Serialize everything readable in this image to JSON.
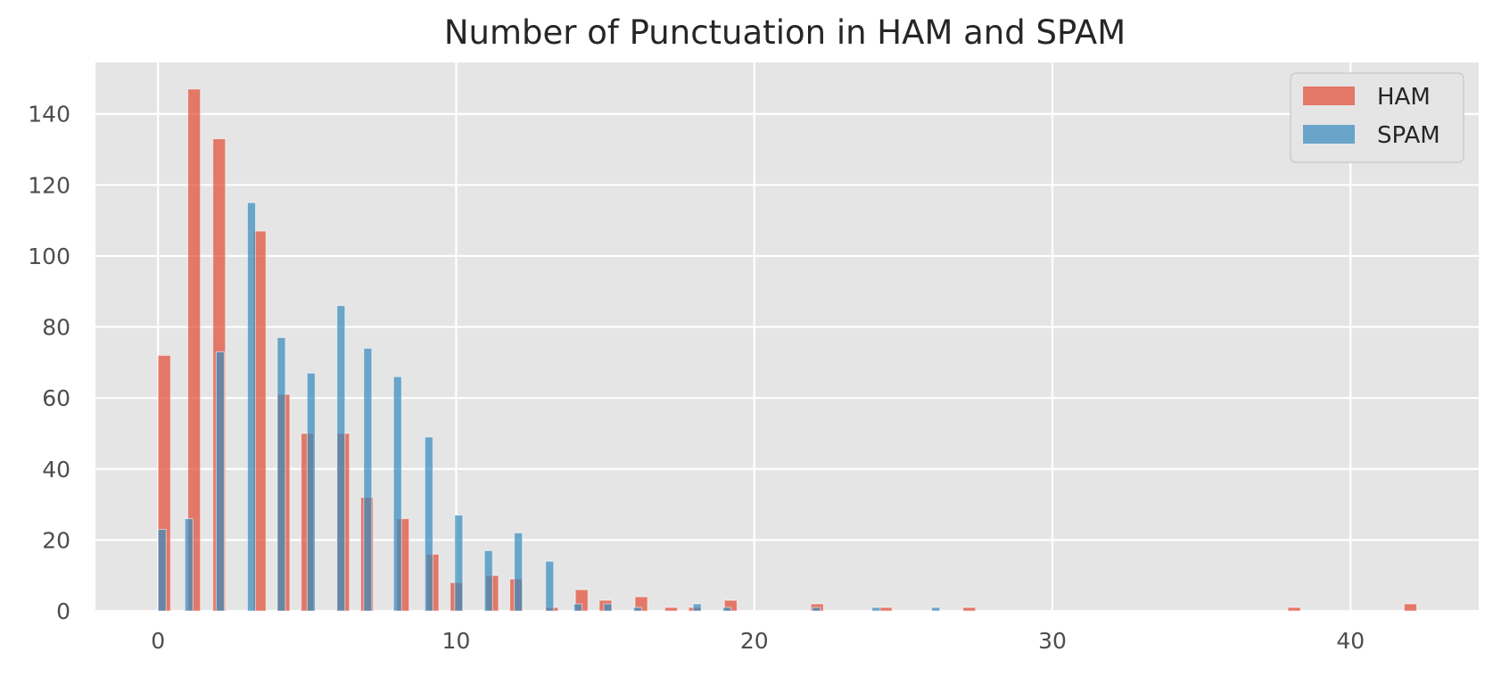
{
  "chart_data": {
    "type": "bar",
    "title": "Number of Punctuation in HAM and SPAM",
    "xlabel": "",
    "ylabel": "",
    "xlim": [
      -2.1,
      44.3
    ],
    "ylim": [
      0,
      154.5
    ],
    "xticks": [
      0,
      10,
      20,
      30,
      40
    ],
    "yticks": [
      0,
      20,
      40,
      60,
      80,
      100,
      120,
      140
    ],
    "grid": true,
    "legend_position": "top-right",
    "series": [
      {
        "name": "HAM",
        "color": "#e24a33",
        "bin_width": 0.42,
        "bins": [
          {
            "x": 0.0,
            "value": 72
          },
          {
            "x": 1.0,
            "value": 147
          },
          {
            "x": 1.84,
            "value": 133
          },
          {
            "x": 3.2,
            "value": 107
          },
          {
            "x": 4.0,
            "value": 61
          },
          {
            "x": 4.8,
            "value": 50
          },
          {
            "x": 6.0,
            "value": 50
          },
          {
            "x": 6.8,
            "value": 32
          },
          {
            "x": 8.0,
            "value": 26
          },
          {
            "x": 9.0,
            "value": 16
          },
          {
            "x": 9.8,
            "value": 8
          },
          {
            "x": 11.0,
            "value": 10
          },
          {
            "x": 11.8,
            "value": 9
          },
          {
            "x": 13.0,
            "value": 1
          },
          {
            "x": 14.0,
            "value": 6
          },
          {
            "x": 14.8,
            "value": 3
          },
          {
            "x": 16.0,
            "value": 4
          },
          {
            "x": 17.0,
            "value": 1
          },
          {
            "x": 17.8,
            "value": 1
          },
          {
            "x": 19.0,
            "value": 3
          },
          {
            "x": 21.9,
            "value": 2
          },
          {
            "x": 24.2,
            "value": 1
          },
          {
            "x": 27.0,
            "value": 1
          },
          {
            "x": 37.9,
            "value": 1
          },
          {
            "x": 41.8,
            "value": 2
          }
        ]
      },
      {
        "name": "SPAM",
        "color": "#348abd",
        "bin_width": 0.27,
        "bins": [
          {
            "x": 0.0,
            "value": 23
          },
          {
            "x": 0.9,
            "value": 26
          },
          {
            "x": 1.95,
            "value": 73
          },
          {
            "x": 3.0,
            "value": 115
          },
          {
            "x": 4.0,
            "value": 77
          },
          {
            "x": 5.0,
            "value": 67
          },
          {
            "x": 6.0,
            "value": 86
          },
          {
            "x": 6.9,
            "value": 74
          },
          {
            "x": 7.9,
            "value": 66
          },
          {
            "x": 8.95,
            "value": 49
          },
          {
            "x": 9.95,
            "value": 27
          },
          {
            "x": 10.95,
            "value": 17
          },
          {
            "x": 11.95,
            "value": 22
          },
          {
            "x": 13.0,
            "value": 14
          },
          {
            "x": 13.95,
            "value": 2
          },
          {
            "x": 14.95,
            "value": 2
          },
          {
            "x": 15.95,
            "value": 1
          },
          {
            "x": 17.95,
            "value": 2
          },
          {
            "x": 18.95,
            "value": 1
          },
          {
            "x": 21.95,
            "value": 1
          },
          {
            "x": 23.95,
            "value": 1
          },
          {
            "x": 25.95,
            "value": 1
          }
        ]
      }
    ]
  }
}
